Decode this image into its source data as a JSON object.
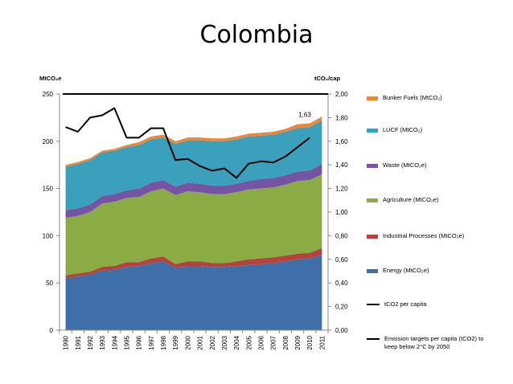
{
  "chart_data": {
    "type": "area",
    "title": "Colombia",
    "stacked": true,
    "left_axis_label": "MtCO₂e",
    "right_axis_label": "tCO₂/cap",
    "categories": [
      "1990",
      "1991",
      "1992",
      "1993",
      "1994",
      "1995",
      "1996",
      "1997",
      "1998",
      "1999",
      "2000",
      "2001",
      "2002",
      "2003",
      "2004",
      "2005",
      "2006",
      "2007",
      "2008",
      "2009",
      "2010",
      "2011"
    ],
    "left_ylim": [
      0,
      250
    ],
    "left_ticks": [
      "0",
      "50",
      "100",
      "150",
      "200",
      "250"
    ],
    "right_ylim": [
      0,
      2.0
    ],
    "right_ticks": [
      "0,00",
      "0,20",
      "0,40",
      "0,60",
      "0,80",
      "1,00",
      "1,20",
      "1,40",
      "1,60",
      "1,80",
      "2,00"
    ],
    "series": [
      {
        "name": "Energy (MtCO₂e)",
        "color": "#3f6fa8",
        "values": [
          55,
          57,
          59,
          63,
          64,
          67,
          68,
          71,
          73,
          66,
          68,
          68,
          67,
          67,
          68,
          69,
          70,
          71,
          73,
          75,
          76,
          80
        ]
      },
      {
        "name": "Industrial Processes (MtCO₂e)",
        "color": "#b2433f",
        "values": [
          3,
          3,
          3,
          4,
          4,
          5,
          4,
          5,
          5,
          4,
          5,
          5,
          4,
          4,
          5,
          6,
          6,
          6,
          6,
          6,
          6,
          7
        ]
      },
      {
        "name": "Agriculture (MtCO₂e)",
        "color": "#8bab45",
        "values": [
          61,
          61,
          63,
          67,
          68,
          68,
          69,
          71,
          72,
          73,
          74,
          73,
          73,
          73,
          73,
          74,
          74,
          74,
          75,
          77,
          77,
          78
        ]
      },
      {
        "name": "Waste (MtCO₂e)",
        "color": "#7554a1",
        "values": [
          8,
          8,
          8,
          8,
          8,
          8,
          9,
          9,
          9,
          9,
          9,
          9,
          9,
          9,
          9,
          9,
          10,
          10,
          10,
          10,
          10,
          11
        ]
      },
      {
        "name": "LUCF (MtCO₂)",
        "color": "#3ba0bb",
        "values": [
          46,
          47,
          47,
          46,
          46,
          46,
          46,
          46,
          45,
          45,
          45,
          46,
          47,
          47,
          47,
          47,
          46,
          46,
          46,
          46,
          46,
          46
        ]
      },
      {
        "name": "Bunker Fuels (MtCO₂)",
        "color": "#e8893a",
        "values": [
          2,
          2,
          2,
          2,
          2,
          2,
          3,
          3,
          3,
          3,
          3,
          3,
          3,
          3,
          3,
          3,
          3,
          3,
          3,
          4,
          4,
          4
        ]
      }
    ],
    "lines": [
      {
        "name": "tCO2 per capita",
        "color": "#000000",
        "axis": "right",
        "values": [
          1.72,
          1.68,
          1.8,
          1.82,
          1.88,
          1.63,
          1.63,
          1.71,
          1.71,
          1.44,
          1.45,
          1.39,
          1.35,
          1.37,
          1.29,
          1.41,
          1.43,
          1.42,
          1.47,
          1.55,
          1.63,
          null
        ]
      },
      {
        "name": "Emission targets per capita (tCO2) to keep below 2°C by 2050",
        "color": "#000000",
        "axis": "right",
        "values": [
          2.0,
          2.0,
          2.0,
          2.0,
          2.0,
          2.0,
          2.0,
          2.0,
          2.0,
          2.0,
          2.0,
          2.0,
          2.0,
          2.0,
          2.0,
          2.0,
          2.0,
          2.0,
          2.0,
          2.0,
          2.0,
          2.0
        ]
      }
    ],
    "annotations": [
      {
        "text": "1,63",
        "category": "2010",
        "value": 1.63,
        "axis": "right"
      }
    ],
    "legend": [
      {
        "name": "Bunker Fuels (MtCO₂)",
        "kind": "area",
        "color": "#e8893a"
      },
      {
        "name": "LUCF (MtCO₂)",
        "kind": "area",
        "color": "#3ba0bb"
      },
      {
        "name": "Waste (MtCO₂e)",
        "kind": "area",
        "color": "#7554a1"
      },
      {
        "name": "Agriculture (MtCO₂e)",
        "kind": "area",
        "color": "#8bab45"
      },
      {
        "name": "Industrial Processes (MtCO₂e)",
        "kind": "area",
        "color": "#b2433f"
      },
      {
        "name": "Energy (MtCO₂e)",
        "kind": "area",
        "color": "#3f6fa8"
      },
      {
        "name": "tCO2 per capita",
        "kind": "line",
        "color": "#000000"
      },
      {
        "name": "Emission targets per capita (tCO2) to keep below 2°C by 2050",
        "kind": "line",
        "color": "#000000"
      }
    ],
    "legend_position": "right"
  }
}
